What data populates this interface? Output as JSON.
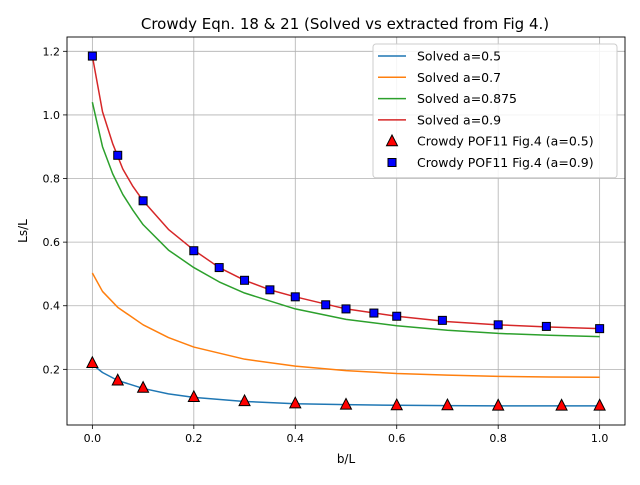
{
  "chart_data": {
    "type": "line",
    "title": "Crowdy Eqn. 18 & 21 (Solved vs extracted from Fig 4.)",
    "xlabel": "b/L",
    "ylabel": "Ls/L",
    "xlim": [
      -0.05,
      1.05
    ],
    "ylim": [
      0.025,
      1.245
    ],
    "xticks": [
      0.0,
      0.2,
      0.4,
      0.6,
      0.8,
      1.0
    ],
    "xtick_labels": [
      "0.0",
      "0.2",
      "0.4",
      "0.6",
      "0.8",
      "1.0"
    ],
    "yticks": [
      0.2,
      0.4,
      0.6,
      0.8,
      1.0,
      1.2
    ],
    "ytick_labels": [
      "0.2",
      "0.4",
      "0.6",
      "0.8",
      "1.0",
      "1.2"
    ],
    "grid": true,
    "legend_position": "top-right",
    "series": [
      {
        "name": "Solved a=0.5",
        "kind": "line",
        "color": "#1f77b4",
        "x": [
          0,
          0.02,
          0.05,
          0.1,
          0.15,
          0.2,
          0.3,
          0.4,
          0.5,
          0.6,
          0.7,
          0.8,
          0.9,
          1.0
        ],
        "y": [
          0.215,
          0.19,
          0.165,
          0.14,
          0.123,
          0.112,
          0.099,
          0.092,
          0.089,
          0.087,
          0.086,
          0.085,
          0.085,
          0.085
        ]
      },
      {
        "name": "Solved a=0.7",
        "kind": "line",
        "color": "#ff7f0e",
        "x": [
          0,
          0.02,
          0.05,
          0.1,
          0.15,
          0.2,
          0.3,
          0.4,
          0.5,
          0.6,
          0.7,
          0.8,
          0.9,
          1.0
        ],
        "y": [
          0.503,
          0.445,
          0.395,
          0.34,
          0.3,
          0.27,
          0.232,
          0.21,
          0.196,
          0.187,
          0.182,
          0.178,
          0.176,
          0.175
        ]
      },
      {
        "name": "Solved a=0.875",
        "kind": "line",
        "color": "#2ca02c",
        "x": [
          0,
          0.02,
          0.04,
          0.06,
          0.08,
          0.1,
          0.15,
          0.2,
          0.25,
          0.3,
          0.4,
          0.5,
          0.6,
          0.7,
          0.8,
          0.9,
          1.0
        ],
        "y": [
          1.04,
          0.9,
          0.815,
          0.75,
          0.7,
          0.655,
          0.575,
          0.52,
          0.475,
          0.44,
          0.39,
          0.357,
          0.337,
          0.323,
          0.313,
          0.307,
          0.303
        ]
      },
      {
        "name": "Solved a=0.9",
        "kind": "line",
        "color": "#d62728",
        "x": [
          0,
          0.02,
          0.04,
          0.06,
          0.08,
          0.1,
          0.15,
          0.2,
          0.25,
          0.3,
          0.35,
          0.4,
          0.5,
          0.6,
          0.7,
          0.8,
          0.9,
          1.0
        ],
        "y": [
          1.185,
          1.01,
          0.91,
          0.83,
          0.775,
          0.73,
          0.64,
          0.575,
          0.52,
          0.48,
          0.45,
          0.428,
          0.39,
          0.367,
          0.35,
          0.34,
          0.333,
          0.328
        ]
      },
      {
        "name": "Crowdy POF11 Fig.4 (a=0.5)",
        "kind": "scatter",
        "marker": "triangle",
        "color": "#ff0000",
        "edgecolor": "#000000",
        "x": [
          0.0,
          0.05,
          0.1,
          0.2,
          0.3,
          0.4,
          0.5,
          0.6,
          0.7,
          0.8,
          0.925,
          1.0
        ],
        "y": [
          0.22,
          0.165,
          0.142,
          0.113,
          0.1,
          0.093,
          0.089,
          0.087,
          0.087,
          0.086,
          0.086,
          0.086
        ]
      },
      {
        "name": "Crowdy POF11 Fig.4 (a=0.9)",
        "kind": "scatter",
        "marker": "square",
        "color": "#0000ff",
        "edgecolor": "#000000",
        "x": [
          0.0,
          0.05,
          0.1,
          0.2,
          0.25,
          0.3,
          0.35,
          0.4,
          0.46,
          0.5,
          0.555,
          0.6,
          0.69,
          0.8,
          0.895,
          1.0
        ],
        "y": [
          1.185,
          0.873,
          0.73,
          0.573,
          0.52,
          0.48,
          0.45,
          0.428,
          0.403,
          0.39,
          0.377,
          0.367,
          0.354,
          0.34,
          0.335,
          0.328
        ]
      }
    ]
  }
}
